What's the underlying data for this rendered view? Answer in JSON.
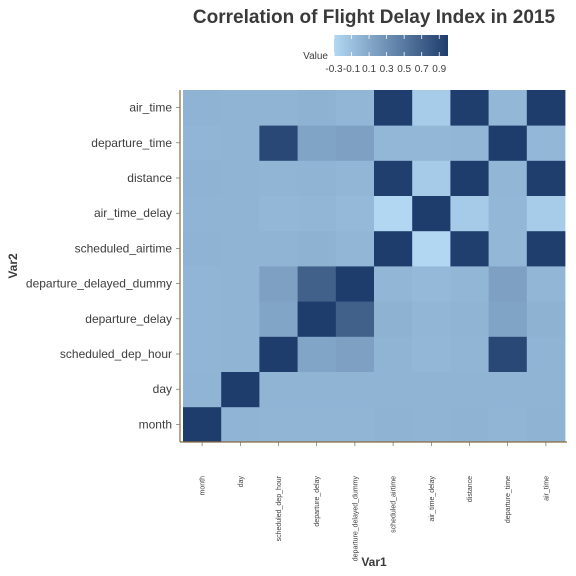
{
  "chart_data": {
    "type": "heatmap",
    "title": "Correlation of Flight Delay Index in 2015",
    "xlabel": "Var1",
    "ylabel": "Var2",
    "x_categories": [
      "month",
      "day",
      "scheduled_dep_hour",
      "departure_delay",
      "departure_delayed_dummy",
      "scheduled_airtime",
      "air_time_delay",
      "distance",
      "departure_time",
      "air_time"
    ],
    "y_categories": [
      "month",
      "day",
      "scheduled_dep_hour",
      "departure_delay",
      "departure_delayed_dummy",
      "scheduled_airtime",
      "air_time_delay",
      "distance",
      "departure_time",
      "air_time"
    ],
    "values": [
      [
        1.0,
        0.0,
        -0.01,
        -0.01,
        -0.01,
        0.01,
        0.0,
        0.01,
        -0.01,
        0.01
      ],
      [
        0.0,
        1.0,
        0.0,
        0.0,
        0.0,
        0.0,
        0.0,
        0.0,
        0.0,
        0.0
      ],
      [
        -0.01,
        0.0,
        1.0,
        0.13,
        0.16,
        0.0,
        -0.03,
        -0.01,
        0.91,
        0.0
      ],
      [
        -0.01,
        0.0,
        0.13,
        1.0,
        0.7,
        0.02,
        -0.02,
        0.0,
        0.14,
        0.02
      ],
      [
        -0.01,
        0.0,
        0.16,
        0.7,
        1.0,
        -0.02,
        -0.04,
        -0.02,
        0.16,
        -0.02
      ],
      [
        0.01,
        0.0,
        0.0,
        0.02,
        -0.02,
        1.0,
        -0.29,
        0.98,
        -0.03,
        0.99
      ],
      [
        0.0,
        0.0,
        -0.03,
        -0.02,
        -0.04,
        -0.29,
        1.0,
        -0.19,
        -0.03,
        -0.2
      ],
      [
        0.01,
        0.0,
        -0.01,
        0.0,
        -0.02,
        0.98,
        -0.19,
        1.0,
        -0.02,
        0.99
      ],
      [
        -0.01,
        0.0,
        0.91,
        0.14,
        0.16,
        -0.03,
        -0.03,
        -0.02,
        1.0,
        -0.03
      ],
      [
        0.01,
        0.0,
        0.0,
        0.02,
        -0.02,
        0.99,
        -0.2,
        0.99,
        -0.03,
        1.0
      ]
    ],
    "value_range": [
      -0.3,
      1.0
    ],
    "legend": {
      "title": "Value",
      "position": "top",
      "ticks": [
        -0.3,
        -0.1,
        0.1,
        0.3,
        0.5,
        0.7,
        0.9
      ],
      "tick_labels": [
        "-0.3",
        "-0.1",
        "0.1",
        "0.3",
        "0.5",
        "0.7",
        "0.9"
      ],
      "low_color": "#b2d8f3",
      "high_color": "#1f3d6c"
    },
    "grid": false,
    "axis_line_color": "#8b6a3e"
  }
}
